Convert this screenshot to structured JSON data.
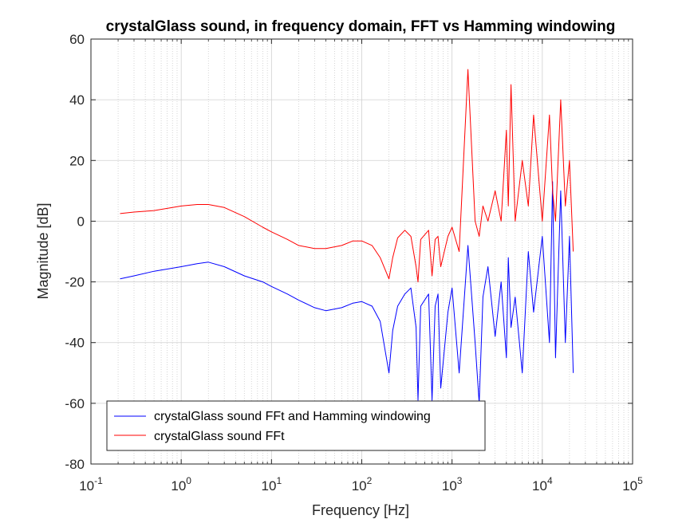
{
  "chart_data": {
    "type": "line",
    "title": "crystalGlass sound, in frequency domain, FFT vs Hamming windowing",
    "xlabel": "Frequency [Hz]",
    "ylabel": "Magnitude [dB]",
    "xscale": "log",
    "xlim": [
      0.1,
      100000
    ],
    "ylim": [
      -80,
      60
    ],
    "x_ticks": [
      0.1,
      1,
      10,
      100,
      1000,
      10000,
      100000
    ],
    "x_tick_labels": [
      {
        "base": "10",
        "exp": "-1"
      },
      {
        "base": "10",
        "exp": "0"
      },
      {
        "base": "10",
        "exp": "1"
      },
      {
        "base": "10",
        "exp": "2"
      },
      {
        "base": "10",
        "exp": "3"
      },
      {
        "base": "10",
        "exp": "4"
      },
      {
        "base": "10",
        "exp": "5"
      }
    ],
    "y_ticks": [
      -80,
      -60,
      -40,
      -20,
      0,
      20,
      40,
      60
    ],
    "y_tick_labels": [
      "-80",
      "-60",
      "-40",
      "-20",
      "0",
      "20",
      "40",
      "60"
    ],
    "grid": true,
    "legend_position": "bottom-left",
    "series": [
      {
        "name": "crystalGlass sound FFt and Hamming windowing",
        "color": "#0000ff",
        "x": [
          0.21,
          0.3,
          0.5,
          0.8,
          1.0,
          1.5,
          2.0,
          3.0,
          5.0,
          8.0,
          10,
          15,
          20,
          30,
          40,
          60,
          80,
          100,
          130,
          160,
          200,
          220,
          250,
          300,
          350,
          400,
          420,
          450,
          550,
          600,
          650,
          700,
          750,
          900,
          1000,
          1200,
          1500,
          1800,
          2000,
          2200,
          2500,
          3000,
          3500,
          4000,
          4200,
          4500,
          5000,
          6000,
          7000,
          8000,
          10000,
          12000,
          13000,
          14000,
          16000,
          18000,
          20000,
          22000
        ],
        "y": [
          -19,
          -18,
          -16.5,
          -15.5,
          -15,
          -14,
          -13.5,
          -15,
          -18,
          -20,
          -21.5,
          -24,
          -26,
          -28.5,
          -29.5,
          -28.5,
          -27,
          -26.5,
          -28,
          -33,
          -50,
          -36,
          -28,
          -24,
          -22,
          -35,
          -59,
          -28,
          -24,
          -59,
          -28,
          -24,
          -55,
          -30,
          -22,
          -50,
          -8,
          -40,
          -60,
          -25,
          -15,
          -38,
          -20,
          -45,
          -12,
          -35,
          -25,
          -50,
          -10,
          -30,
          -5,
          -40,
          13,
          -45,
          10,
          -40,
          -5,
          -50
        ]
      },
      {
        "name": "crystalGlass sound FFt",
        "color": "#ff0000",
        "x": [
          0.21,
          0.3,
          0.5,
          0.8,
          1.0,
          1.5,
          2.0,
          3.0,
          5.0,
          8.0,
          10,
          15,
          20,
          30,
          40,
          60,
          80,
          100,
          130,
          160,
          200,
          220,
          250,
          300,
          350,
          400,
          420,
          450,
          550,
          600,
          650,
          700,
          750,
          900,
          1000,
          1200,
          1500,
          1800,
          2000,
          2200,
          2500,
          3000,
          3500,
          4000,
          4200,
          4500,
          5000,
          6000,
          7000,
          8000,
          10000,
          12000,
          13000,
          14000,
          16000,
          18000,
          20000,
          22000
        ],
        "y": [
          2.5,
          3,
          3.5,
          4.5,
          5,
          5.5,
          5.5,
          4.5,
          1.5,
          -2,
          -3.5,
          -6,
          -8,
          -9,
          -9,
          -8,
          -6.5,
          -6.5,
          -8,
          -12,
          -19,
          -12,
          -5.5,
          -3,
          -5,
          -15,
          -20,
          -6,
          -3,
          -18,
          -6,
          -5,
          -15,
          -5,
          -2,
          -10,
          50,
          0,
          -5,
          5,
          0,
          10,
          0,
          30,
          5,
          45,
          0,
          20,
          5,
          35,
          0,
          35,
          10,
          0,
          40,
          5,
          20,
          -10
        ]
      }
    ]
  }
}
